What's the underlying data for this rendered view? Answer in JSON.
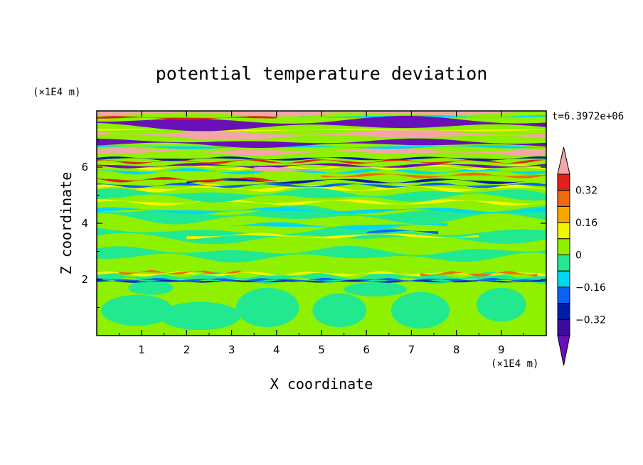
{
  "chart_data": {
    "type": "heatmap",
    "title": "potential temperature deviation",
    "xlabel": "X coordinate",
    "ylabel": "Z coordinate",
    "x_unit": "(×1E4 m)",
    "y_unit": "(×1E4 m)",
    "time_label": "t=6.3972e+06",
    "xlim": [
      0,
      10
    ],
    "ylim": [
      0,
      8
    ],
    "x_ticks": [
      "1",
      "2",
      "3",
      "4",
      "5",
      "6",
      "7",
      "8",
      "9"
    ],
    "y_ticks": [
      "2",
      "4",
      "6"
    ],
    "grid": false,
    "legend": "right",
    "colorbar": {
      "labels": [
        "0.32",
        "0.16",
        "0",
        "-0.16",
        "-0.32"
      ],
      "levels": [
        0.32,
        0.16,
        0,
        -0.16,
        -0.32
      ],
      "colors": [
        "#f3a6a8",
        "#e0201b",
        "#f06a10",
        "#f6a800",
        "#f2f600",
        "#8ff000",
        "#22e890",
        "#00d8f2",
        "#0c62ee",
        "#001ea8",
        "#3a0c9c",
        "#6a10b8"
      ]
    },
    "colors": {
      "pink": "#f3a6a8",
      "red": "#e0201b",
      "orange": "#f06a10",
      "amber": "#f6a800",
      "yellow": "#f2f600",
      "lime": "#8ff000",
      "sea_green": "#22e890",
      "cyan": "#00d8f2",
      "blue": "#0c62ee",
      "navy": "#001ea8",
      "indigo": "#3a0c9c",
      "purple": "#6a10b8"
    }
  }
}
